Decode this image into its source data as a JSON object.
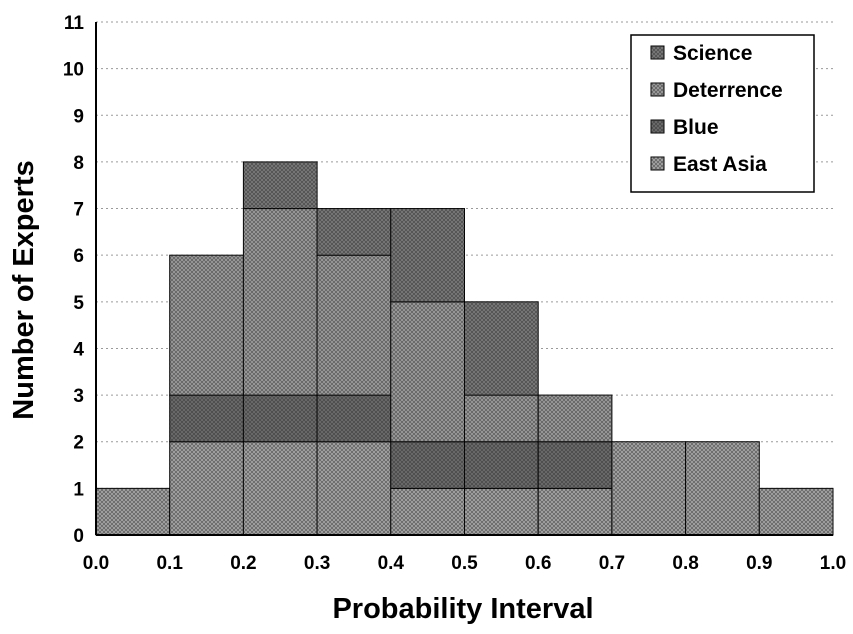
{
  "chart_data": {
    "type": "bar",
    "stacked": true,
    "x_bin_edges": [
      0.0,
      0.1,
      0.2,
      0.3,
      0.4,
      0.5,
      0.6,
      0.7,
      0.8,
      0.9,
      1.0
    ],
    "x_tick_labels": [
      "0.0",
      "0.1",
      "0.2",
      "0.3",
      "0.4",
      "0.5",
      "0.6",
      "0.7",
      "0.8",
      "0.9",
      "1.0"
    ],
    "y_tick_labels": [
      "0",
      "1",
      "2",
      "3",
      "4",
      "5",
      "6",
      "7",
      "8",
      "9",
      "10",
      "11"
    ],
    "xlabel": "Probability Interval",
    "ylabel": "Number of Experts",
    "xlim": [
      0.0,
      1.0
    ],
    "ylim": [
      0,
      11
    ],
    "grid": "horizontal-dotted",
    "legend_position": "top-right",
    "series": [
      {
        "name": "East Asia",
        "values": [
          1,
          2,
          2,
          2,
          1,
          1,
          1,
          2,
          2,
          1
        ],
        "color": "#a9a9a9"
      },
      {
        "name": "Blue",
        "values": [
          0,
          1,
          1,
          1,
          1,
          1,
          1,
          0,
          0,
          0
        ],
        "color": "#6e6e6e"
      },
      {
        "name": "Deterrence",
        "values": [
          0,
          3,
          4,
          3,
          3,
          1,
          1,
          0,
          0,
          0
        ],
        "color": "#a0a0a0"
      },
      {
        "name": "Science",
        "values": [
          0,
          0,
          1,
          1,
          2,
          2,
          0,
          0,
          0,
          0
        ],
        "color": "#7c7c7c"
      }
    ],
    "legend_order": [
      "Science",
      "Deterrence",
      "Blue",
      "East Asia"
    ]
  }
}
